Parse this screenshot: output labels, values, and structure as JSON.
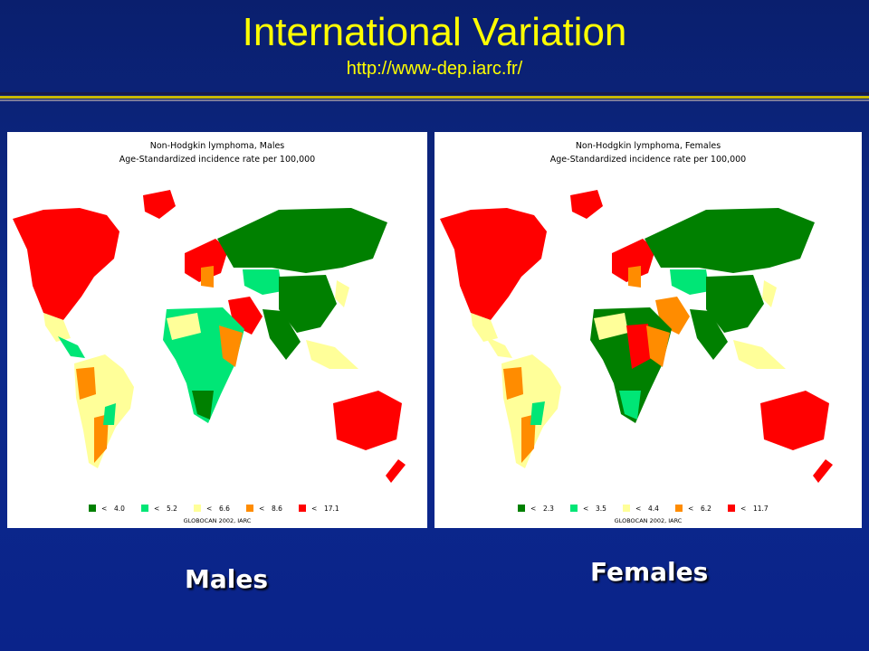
{
  "slide": {
    "title": "International Variation",
    "subtitle": "http://www-dep.iarc.fr/"
  },
  "colors": {
    "very_low": "#008000",
    "low": "#00e676",
    "mid": "#ffff99",
    "high": "#ff8c00",
    "very_high": "#ff0000"
  },
  "maps": [
    {
      "id": "males",
      "title_line1": "Non-Hodgkin lymphoma, Males",
      "title_line2": "Age-Standardized incidence rate per 100,000",
      "legend": [
        {
          "symbol": "<",
          "value": "4.0"
        },
        {
          "symbol": "<",
          "value": "5.2"
        },
        {
          "symbol": "<",
          "value": "6.6"
        },
        {
          "symbol": "<",
          "value": "8.6"
        },
        {
          "symbol": "<",
          "value": "17.1"
        }
      ],
      "source": "GLOBOCAN 2002, IARC",
      "caption": "Males"
    },
    {
      "id": "females",
      "title_line1": "Non-Hodgkin lymphoma, Females",
      "title_line2": "Age-Standardized incidence rate per 100,000",
      "legend": [
        {
          "symbol": "<",
          "value": "2.3"
        },
        {
          "symbol": "<",
          "value": "3.5"
        },
        {
          "symbol": "<",
          "value": "4.4"
        },
        {
          "symbol": "<",
          "value": "6.2"
        },
        {
          "symbol": "<",
          "value": "11.7"
        }
      ],
      "source": "GLOBOCAN 2002, IARC",
      "caption": "Females"
    }
  ]
}
